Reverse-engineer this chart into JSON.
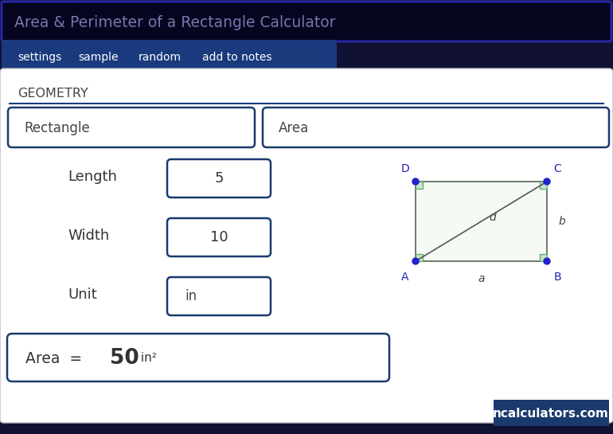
{
  "title_text": "Area & Perimeter of a Rectangle Calculator",
  "title_bg": "#050520",
  "title_border": "#2a2aaa",
  "title_color": "#7777aa",
  "tab_bg": "#1a3a7e",
  "tabs": [
    "settings",
    "sample",
    "random",
    "add to notes"
  ],
  "main_bg": "#ffffff",
  "outer_bg": "#000000",
  "section_label": "GEOMETRY",
  "section_line": "#1a3a7e",
  "dropdown1": "Rectangle",
  "dropdown2": "Area",
  "field_length_label": "Length",
  "field_length_value": "5",
  "field_width_label": "Width",
  "field_width_value": "10",
  "field_unit_label": "Unit",
  "field_unit_value": "in",
  "result_prefix": "Area  = ",
  "result_value": "50",
  "result_suffix": " in²",
  "border_color": "#1a3a6e",
  "rect_fill": "#e8f5e9",
  "rect_border": "#607d6a",
  "corner_sq_color": "#90b89a",
  "dot_color": "#2222cc",
  "diag_color": "#555555",
  "label_color": "#2222bb",
  "side_label_color": "#444444",
  "footer_bg": "#1a3a6e",
  "footer_text": "ncalculators.com",
  "footer_color": "#ffffff",
  "card_bg": "#ffffff",
  "card_border": "#ccccdd"
}
